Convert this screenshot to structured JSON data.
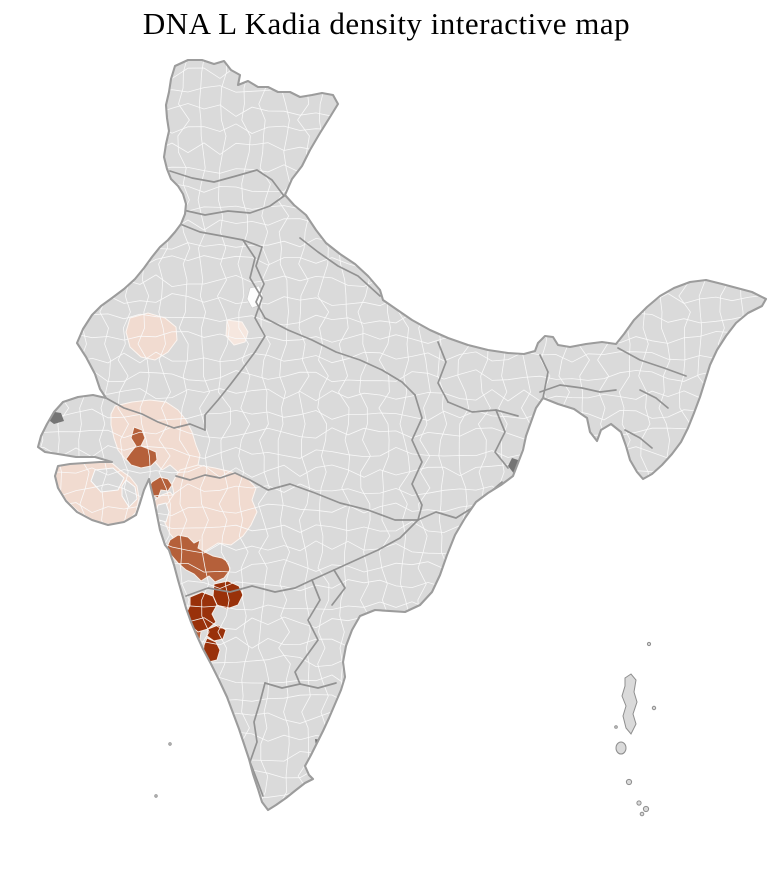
{
  "title": "DNA L Kadia density interactive map",
  "map": {
    "region_depicted": "India district choropleth",
    "palette": {
      "sea": "#ffffff",
      "district_base": "#dadada",
      "district_border": "#fafafa",
      "state_border": "#8e8e8e",
      "country_border": "#9c9c9c",
      "density_low": "#f1dbd0",
      "density_faint": "#f6e7df",
      "density_pale": "#f4e3db",
      "density_medium": "#b5603a",
      "density_high": "#99310a",
      "no_data": "#fdfdfd",
      "dark_terrain": "#757575"
    },
    "density_levels": [
      {
        "level": "none",
        "color": "#dadada"
      },
      {
        "level": "low",
        "color": "#f1dbd0"
      },
      {
        "level": "medium",
        "color": "#b5603a"
      },
      {
        "level": "high",
        "color": "#99310a"
      }
    ]
  }
}
